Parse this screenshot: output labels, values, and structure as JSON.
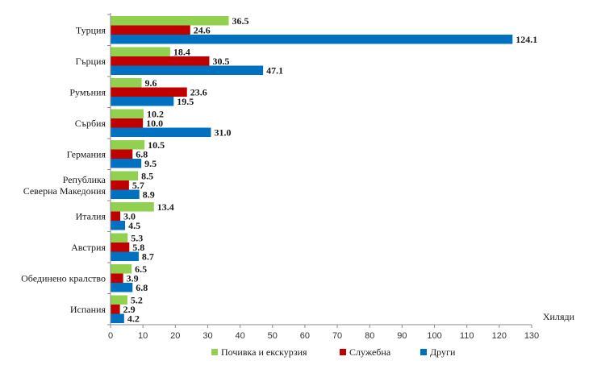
{
  "chart_data": {
    "type": "bar",
    "orientation": "horizontal",
    "categories": [
      "Турция",
      "Гърция",
      "Румъния",
      "Сърбия",
      "Германия",
      "Република Северна Македония",
      "Италия",
      "Австрия",
      "Обединено кралство",
      "Испания"
    ],
    "category_lines": [
      [
        "Турция"
      ],
      [
        "Гърция"
      ],
      [
        "Румъния"
      ],
      [
        "Сърбия"
      ],
      [
        "Германия"
      ],
      [
        "Република",
        "Северна Македония"
      ],
      [
        "Италия"
      ],
      [
        "Австрия"
      ],
      [
        "Обединено кралство"
      ],
      [
        "Испания"
      ]
    ],
    "series": [
      {
        "name": "Почивка и екскурзия",
        "color": "#92d050",
        "values": [
          36.5,
          18.4,
          9.6,
          10.2,
          10.5,
          8.5,
          13.4,
          5.3,
          6.5,
          5.2
        ]
      },
      {
        "name": "Служебна",
        "color": "#c00000",
        "values": [
          24.6,
          30.5,
          23.6,
          10.0,
          6.8,
          5.7,
          3.0,
          5.8,
          3.9,
          2.9
        ]
      },
      {
        "name": "Други",
        "color": "#0070c0",
        "values": [
          124.1,
          47.1,
          19.5,
          31.0,
          9.5,
          8.9,
          4.5,
          8.7,
          6.8,
          4.2
        ]
      }
    ],
    "xlabel": "Хиляди",
    "xlim": [
      0,
      130
    ],
    "xticks": [
      0,
      10,
      20,
      30,
      40,
      50,
      60,
      70,
      80,
      90,
      100,
      110,
      120,
      130
    ],
    "grid": false,
    "legend_position": "bottom"
  }
}
